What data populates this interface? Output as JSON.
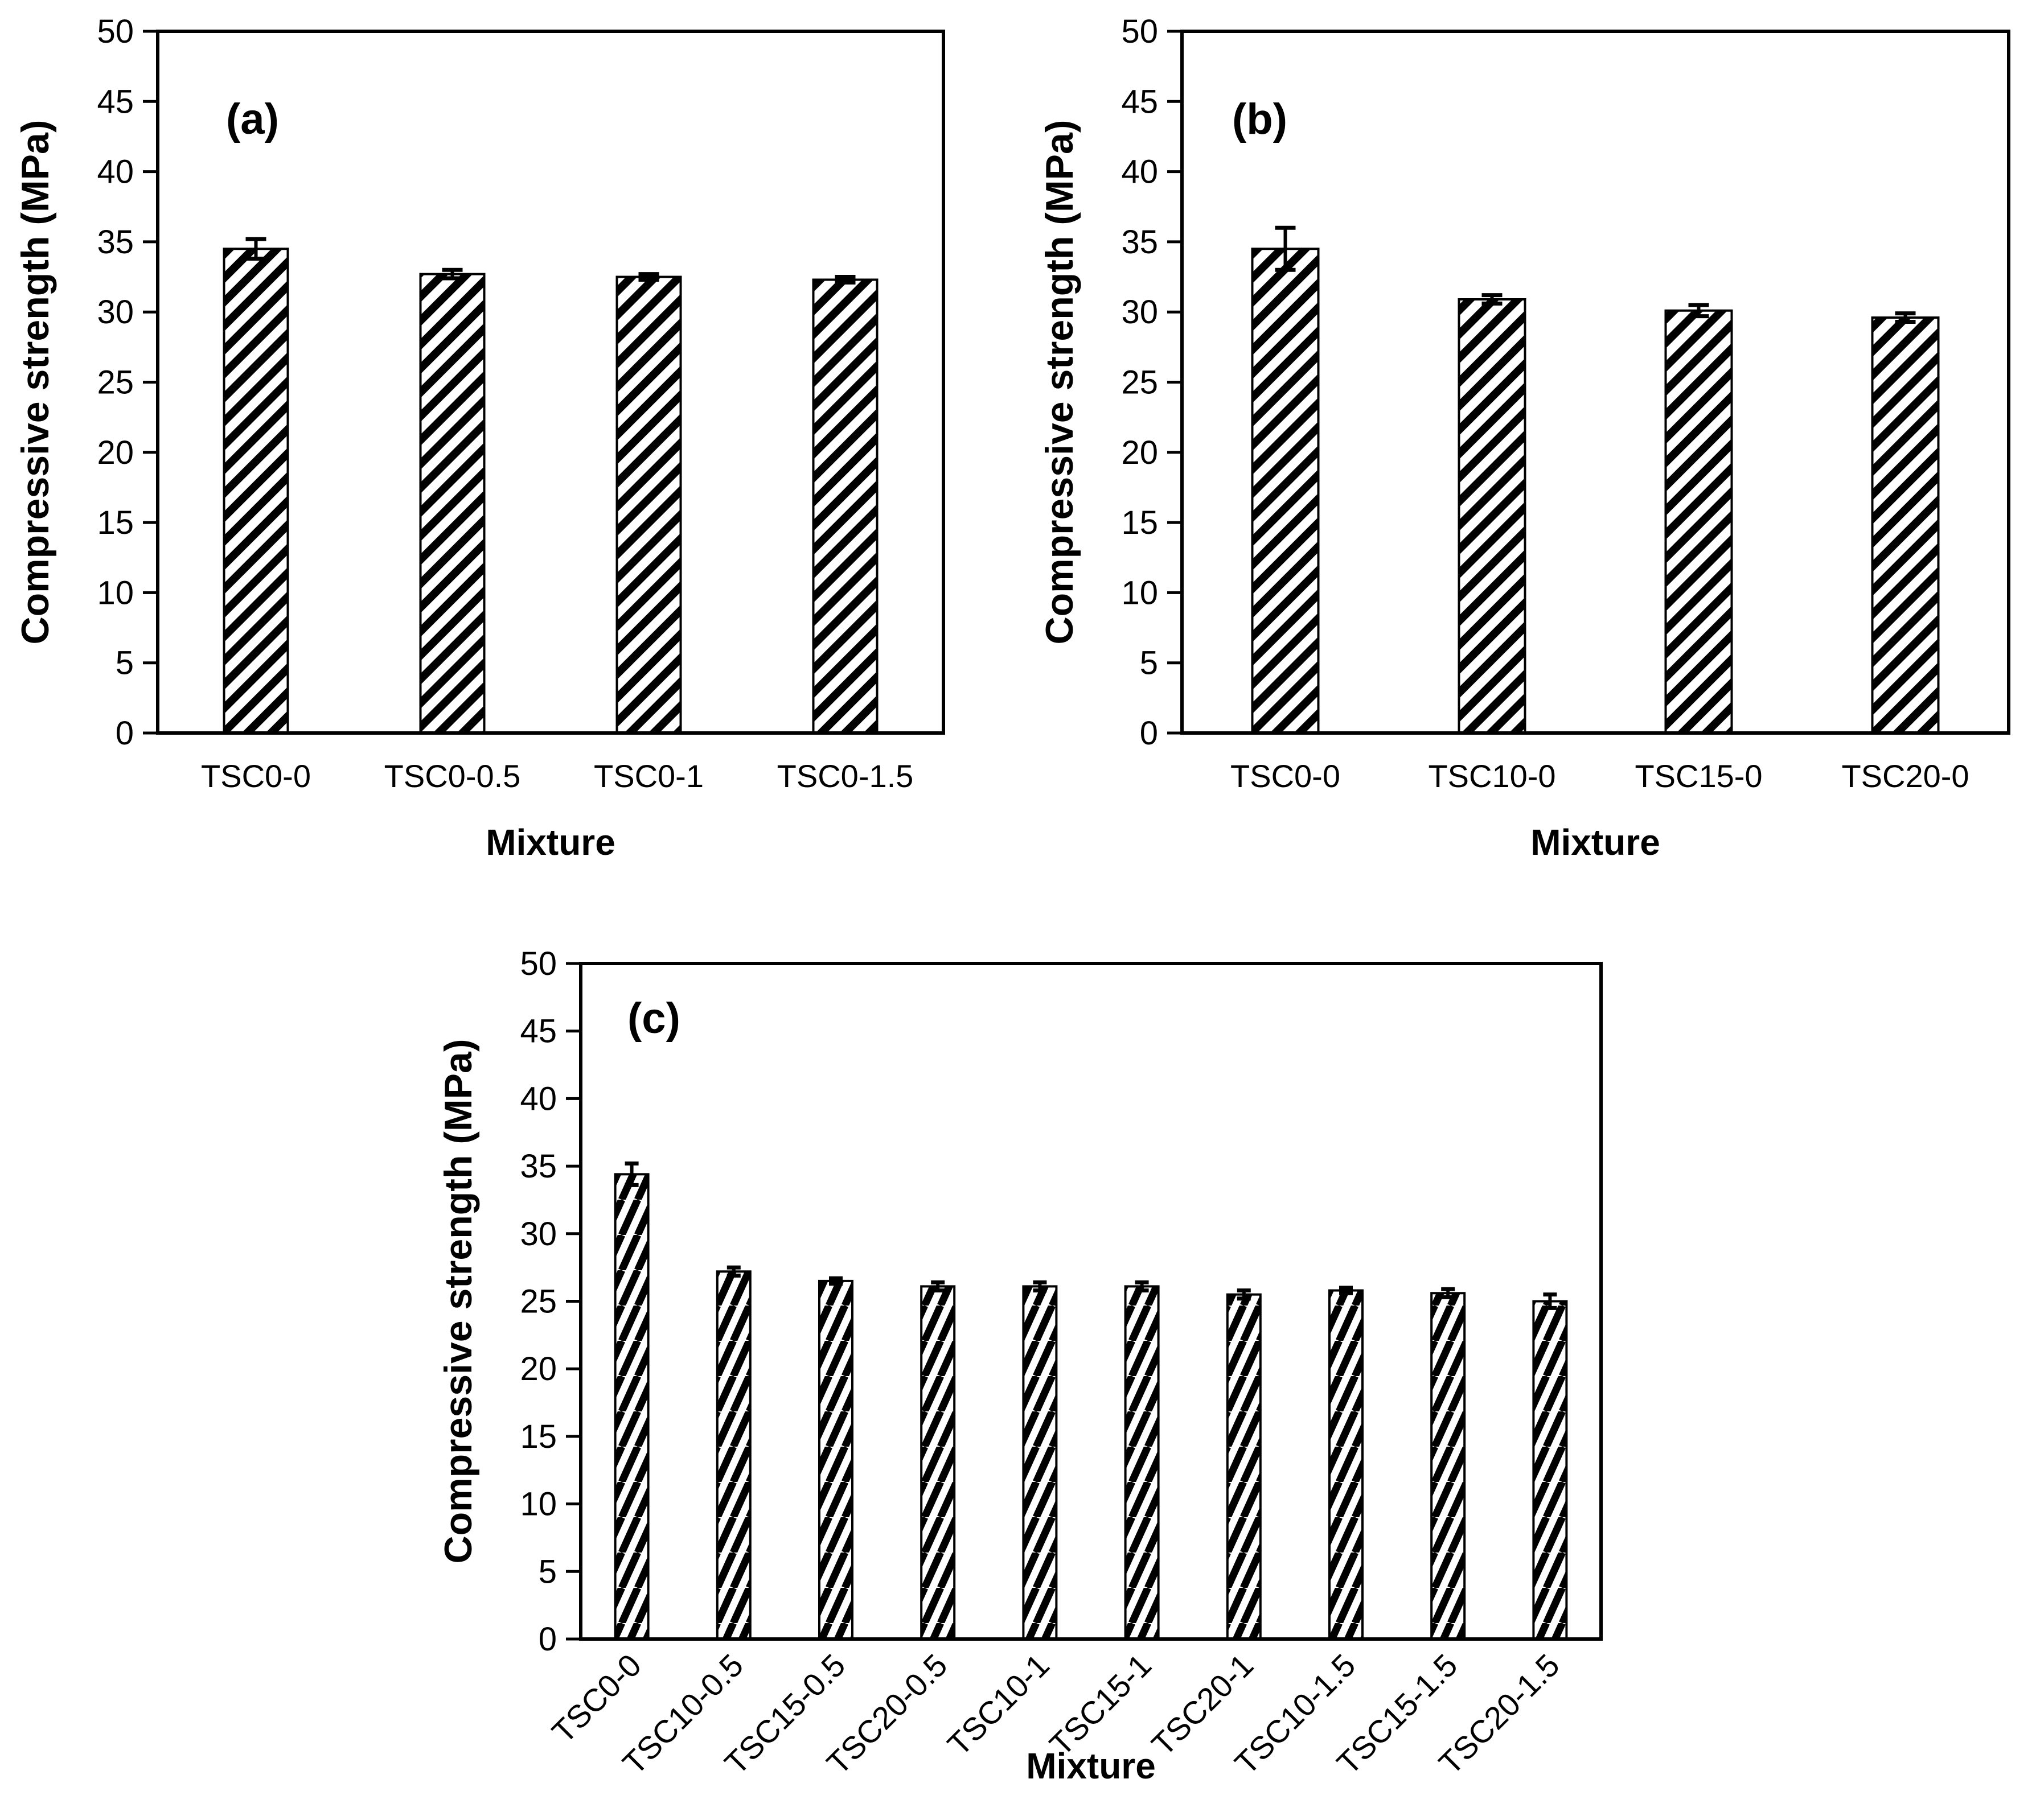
{
  "figure": {
    "background": "#ffffff",
    "ink": "#000000",
    "bar_fill_description": "white bars with black diagonal hatch stripes and black outline",
    "error_bar_color": "#000000"
  },
  "chart_data": [
    {
      "panel": "(a)",
      "type": "bar",
      "title": "",
      "xlabel": "Mixture",
      "ylabel": "Compressive strength (MPa)",
      "ylim": [
        0,
        50
      ],
      "yticks": [
        0,
        5,
        10,
        15,
        20,
        25,
        30,
        35,
        40,
        45,
        50
      ],
      "grid": "off",
      "legend": null,
      "x_tick_rotation": 0,
      "categories": [
        "TSC0-0",
        "TSC0-0.5",
        "TSC0-1",
        "TSC0-1.5"
      ],
      "values": [
        34.5,
        32.7,
        32.5,
        32.3
      ],
      "errors": [
        0.7,
        0.3,
        0.2,
        0.2
      ]
    },
    {
      "panel": "(b)",
      "type": "bar",
      "title": "",
      "xlabel": "Mixture",
      "ylabel": "Compressive strength (MPa)",
      "ylim": [
        0,
        50
      ],
      "yticks": [
        0,
        5,
        10,
        15,
        20,
        25,
        30,
        35,
        40,
        45,
        50
      ],
      "grid": "off",
      "legend": null,
      "x_tick_rotation": 0,
      "categories": [
        "TSC0-0",
        "TSC10-0",
        "TSC15-0",
        "TSC20-0"
      ],
      "values": [
        34.5,
        30.9,
        30.1,
        29.6
      ],
      "errors": [
        1.5,
        0.3,
        0.4,
        0.3
      ]
    },
    {
      "panel": "(c)",
      "type": "bar",
      "title": "",
      "xlabel": "Mixture",
      "ylabel": "Compressive strength (MPa)",
      "ylim": [
        0,
        50
      ],
      "yticks": [
        0,
        5,
        10,
        15,
        20,
        25,
        30,
        35,
        40,
        45,
        50
      ],
      "grid": "off",
      "legend": null,
      "x_tick_rotation": 45,
      "categories": [
        "TSC0-0",
        "TSC10-0.5",
        "TSC15-0.5",
        "TSC20-0.5",
        "TSC10-1",
        "TSC15-1",
        "TSC20-1",
        "TSC10-1.5",
        "TSC15-1.5",
        "TSC20-1.5"
      ],
      "values": [
        34.4,
        27.2,
        26.5,
        26.1,
        26.1,
        26.1,
        25.5,
        25.8,
        25.6,
        25.0
      ],
      "errors": [
        0.8,
        0.3,
        0.2,
        0.3,
        0.3,
        0.3,
        0.3,
        0.2,
        0.3,
        0.5
      ]
    }
  ]
}
